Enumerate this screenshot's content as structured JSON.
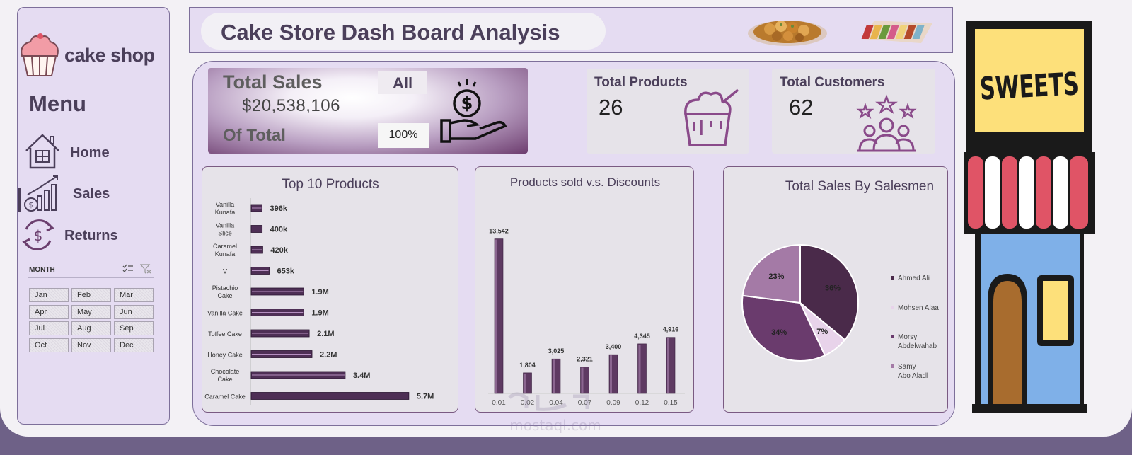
{
  "brand": {
    "title": "cake shop"
  },
  "menu": {
    "title": "Menu",
    "items": [
      {
        "label": "Home",
        "icon": "home-icon"
      },
      {
        "label": "Sales",
        "icon": "sales-chart-icon"
      },
      {
        "label": "Returns",
        "icon": "returns-icon"
      }
    ]
  },
  "slicer": {
    "title": "MONTH",
    "months": [
      "Jan",
      "Feb",
      "Mar",
      "Apr",
      "May",
      "Jun",
      "Jul",
      "Aug",
      "Sep",
      "Oct",
      "Nov",
      "Dec"
    ]
  },
  "header": {
    "title": "Cake Store Dash Board Analysis"
  },
  "kpis": {
    "total_sales": {
      "label": "Total Sales",
      "value": "$20,538,106",
      "filter": "All",
      "of_total_label": "Of Total",
      "of_total_value": "100%"
    },
    "total_products": {
      "label": "Total Products",
      "value": "26"
    },
    "total_customers": {
      "label": "Total Customers",
      "value": "62"
    }
  },
  "sign": {
    "text": "SWEETS"
  },
  "colors": {
    "accent": "#4b3f5a",
    "bar": "#5e3a62",
    "panel": "#e5dcf2",
    "pie": [
      "#4a2a4a",
      "#e8d3ea",
      "#6a3b6d",
      "#a47aa6"
    ]
  },
  "chart_data": [
    {
      "type": "bar",
      "orientation": "horizontal",
      "title": "Top 10 Products",
      "categories": [
        "Vanilla Kunafa",
        "Vanilla Slice",
        "Caramel Kunafa",
        "V",
        "Pistachio Cake",
        "Vanilla Cake",
        "Toffee Cake",
        "Honey Cake",
        "Chocolate Cake",
        "Caramel Cake"
      ],
      "values": [
        396000,
        400000,
        420000,
        653000,
        1900000,
        1900000,
        2100000,
        2200000,
        3400000,
        5700000
      ],
      "labels": [
        "396k",
        "400k",
        "420k",
        "653k",
        "1.9M",
        "1.9M",
        "2.1M",
        "2.2M",
        "3.4M",
        "5.7M"
      ],
      "xlim": [
        0,
        6000000
      ],
      "grid": false
    },
    {
      "type": "bar",
      "title": "Products sold v.s. Discounts",
      "categories": [
        "0.01",
        "0.02",
        "0.04",
        "0.07",
        "0.09",
        "0.12",
        "0.15"
      ],
      "values": [
        13542,
        1804,
        3025,
        2321,
        3400,
        4345,
        4916
      ],
      "labels": [
        "13,542",
        "1,804",
        "3,025",
        "2,321",
        "3,400",
        "4,345",
        "4,916"
      ],
      "ylim": [
        0,
        15500
      ],
      "grid": false
    },
    {
      "type": "pie",
      "title": "Total  Sales By Salesmen",
      "series": [
        {
          "name": "Ahmed Ali",
          "value": 36
        },
        {
          "name": "Mohsen Alaa",
          "value": 7
        },
        {
          "name": "Morsy Abdelwahab",
          "value": 34
        },
        {
          "name": "Samy Abo Aladl",
          "value": 23
        }
      ],
      "labels": [
        "36%",
        "7%",
        "34%",
        "23%"
      ],
      "legend": "right"
    }
  ]
}
